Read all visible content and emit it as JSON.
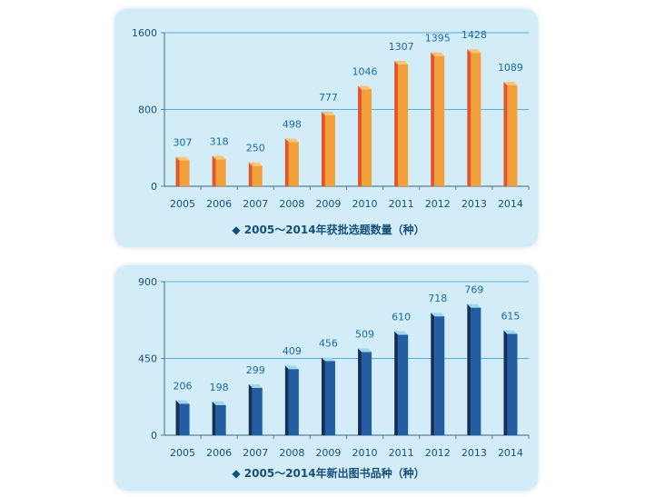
{
  "colors": {
    "panel_bg": "#d2ecf8",
    "axis": "#5a7f97",
    "grid": "#4fb0dd",
    "text": "#16507a",
    "label": "#1b6aa8",
    "orange_front": "#f3a03a",
    "orange_side": "#e2552a",
    "orange_top": "#f7c57a",
    "blue_front": "#215da0",
    "blue_side": "#172e59",
    "blue_top": "#9fd7ea"
  },
  "chart_data": [
    {
      "type": "bar",
      "title": "◆ 2005～2014年获批选题数量（种）",
      "categories": [
        "2005",
        "2006",
        "2007",
        "2008",
        "2009",
        "2010",
        "2011",
        "2012",
        "2013",
        "2014"
      ],
      "values": [
        307,
        318,
        250,
        498,
        777,
        1046,
        1307,
        1395,
        1428,
        1089
      ],
      "yticks": [
        0,
        800,
        1600
      ],
      "ylim": [
        0,
        1600
      ],
      "grid": true,
      "palette": "orange"
    },
    {
      "type": "bar",
      "title": "◆ 2005～2014年新出图书品种（种）",
      "categories": [
        "2005",
        "2006",
        "2007",
        "2008",
        "2009",
        "2010",
        "2011",
        "2012",
        "2013",
        "2014"
      ],
      "values": [
        206,
        198,
        299,
        409,
        456,
        509,
        610,
        718,
        769,
        615
      ],
      "yticks": [
        0,
        450,
        900
      ],
      "ylim": [
        0,
        900
      ],
      "grid": true,
      "palette": "blue"
    }
  ]
}
